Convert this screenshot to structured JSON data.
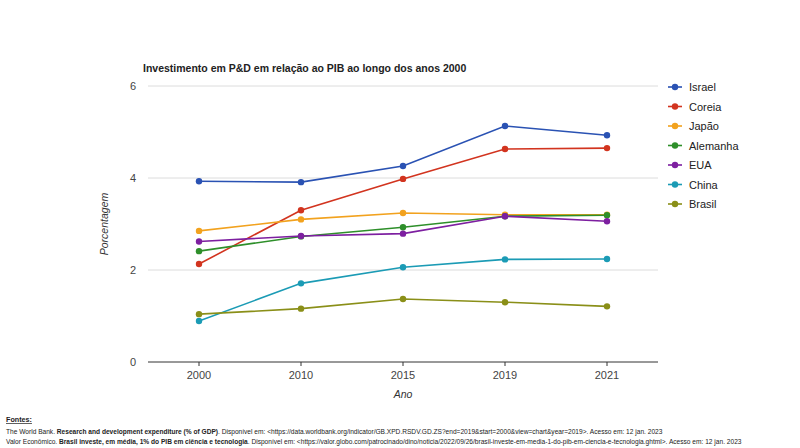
{
  "chart_data": {
    "type": "line",
    "title": "Investimento em P&D em relação ao PIB ao longo dos anos 2000",
    "x_label": "Ano",
    "y_label": "Porcentagem",
    "categories": [
      "2000",
      "2010",
      "2015",
      "2019",
      "2021"
    ],
    "series": [
      {
        "name": "Israel",
        "color": "#2a52b3",
        "values": [
          3.93,
          3.91,
          4.26,
          5.13,
          4.93
        ]
      },
      {
        "name": "Coreia",
        "color": "#d2341f",
        "values": [
          2.13,
          3.3,
          3.98,
          4.63,
          4.65
        ]
      },
      {
        "name": "Japão",
        "color": "#f2a21e",
        "values": [
          2.85,
          3.1,
          3.24,
          3.2,
          3.2
        ]
      },
      {
        "name": "Alemanha",
        "color": "#2e8f2a",
        "values": [
          2.41,
          2.73,
          2.93,
          3.17,
          3.19
        ]
      },
      {
        "name": "EUA",
        "color": "#7d1fa0",
        "values": [
          2.62,
          2.74,
          2.79,
          3.17,
          3.06
        ]
      },
      {
        "name": "China",
        "color": "#1b9bb5",
        "values": [
          0.89,
          1.71,
          2.06,
          2.23,
          2.24
        ]
      },
      {
        "name": "Brasil",
        "color": "#8a8f18",
        "values": [
          1.04,
          1.16,
          1.37,
          1.3,
          1.21
        ]
      }
    ],
    "ylim": [
      0,
      6
    ],
    "yticks": [
      0,
      2,
      4,
      6
    ],
    "grid": true,
    "legend": "right",
    "marker": "circle",
    "line_style": "solid"
  },
  "sources_label": "Fontes:",
  "sources": [
    {
      "author": "The World Bank. ",
      "title": "Research and development expenditure (% of GDP)",
      "rest": ". Disponível em: <https://data.worldbank.org/indicator/GB.XPD.RSDV.GD.ZS?end=2019&start=2000&view=chart&year=2019>. Acesso em: 12 jan. 2023"
    },
    {
      "author": "Valor Econômico. ",
      "title": "Brasil investe, em média, 1% do PIB em ciência e tecnologia",
      "rest": ". Disponível em: <https://valor.globo.com/patrocinado/dino/noticia/2022/09/26/brasil-investe-em-media-1-do-pib-em-ciencia-e-tecnologia.ghtml>. Acesso em: 12 jan. 2023"
    }
  ]
}
